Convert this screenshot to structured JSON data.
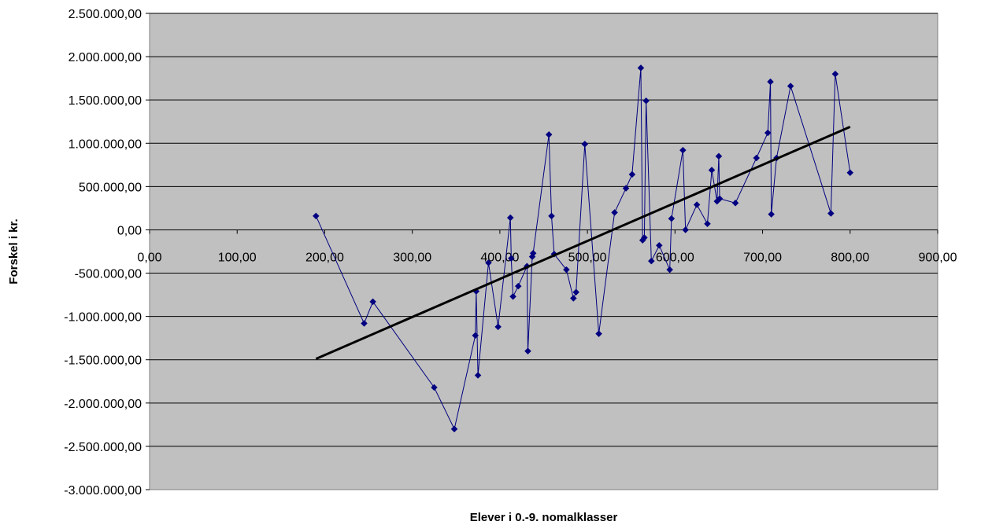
{
  "chart_data": {
    "type": "scatter",
    "title": "",
    "xlabel": "Elever i 0.-9. nomalklasser",
    "ylabel": "Forskel i kr.",
    "xlim": [
      0,
      900
    ],
    "ylim": [
      -3000000,
      2500000
    ],
    "x_ticks": [
      0,
      100,
      200,
      300,
      400,
      500,
      600,
      700,
      800,
      900
    ],
    "x_tick_labels": [
      "0,00",
      "100,00",
      "200,00",
      "300,00",
      "400,00",
      "500,00",
      "600,00",
      "700,00",
      "800,00",
      "900,00"
    ],
    "y_ticks": [
      2500000,
      2000000,
      1500000,
      1000000,
      500000,
      0,
      -500000,
      -1000000,
      -1500000,
      -2000000,
      -2500000,
      -3000000
    ],
    "y_tick_labels": [
      "2.500.000,00",
      "2.000.000,00",
      "1.500.000,00",
      "1.000.000,00",
      "500.000,00",
      "0,00",
      "-500.000,00",
      "-1.000.000,00",
      "-1.500.000,00",
      "-2.000.000,00",
      "-2.500.000,00",
      "-3.000.000,00"
    ],
    "grid": "horizontal",
    "legend": "none",
    "colors": {
      "plot_background": "#c0c0c0",
      "series": "#000080",
      "trendline": "#000000",
      "gridline": "#000000"
    },
    "series": [
      {
        "marker": "diamond",
        "connected": true,
        "points": [
          [
            190,
            160000
          ],
          [
            245,
            -1080000
          ],
          [
            255,
            -830000
          ],
          [
            325,
            -1820000
          ],
          [
            348,
            -2300000
          ],
          [
            372,
            -1220000
          ],
          [
            373,
            -710000
          ],
          [
            375,
            -1680000
          ],
          [
            387,
            -380000
          ],
          [
            398,
            -1120000
          ],
          [
            412,
            140000
          ],
          [
            413,
            -330000
          ],
          [
            415,
            -770000
          ],
          [
            421,
            -650000
          ],
          [
            431,
            -420000
          ],
          [
            432,
            -1400000
          ],
          [
            437,
            -310000
          ],
          [
            438,
            -270000
          ],
          [
            456,
            1100000
          ],
          [
            459,
            160000
          ],
          [
            462,
            -280000
          ],
          [
            476,
            -460000
          ],
          [
            484,
            -790000
          ],
          [
            487,
            -720000
          ],
          [
            497,
            990000
          ],
          [
            513,
            -1200000
          ],
          [
            531,
            200000
          ],
          [
            544,
            480000
          ],
          [
            551,
            640000
          ],
          [
            561,
            1870000
          ],
          [
            563,
            -120000
          ],
          [
            565,
            -90000
          ],
          [
            567,
            1490000
          ],
          [
            573,
            -360000
          ],
          [
            582,
            -180000
          ],
          [
            594,
            -460000
          ],
          [
            596,
            130000
          ],
          [
            609,
            920000
          ],
          [
            612,
            0
          ],
          [
            625,
            290000
          ],
          [
            637,
            70000
          ],
          [
            642,
            690000
          ],
          [
            648,
            330000
          ],
          [
            650,
            850000
          ],
          [
            651,
            360000
          ],
          [
            669,
            310000
          ],
          [
            693,
            830000
          ],
          [
            706,
            1120000
          ],
          [
            709,
            1710000
          ],
          [
            710,
            180000
          ],
          [
            716,
            830000
          ],
          [
            732,
            1660000
          ],
          [
            778,
            190000
          ],
          [
            783,
            1800000
          ],
          [
            800,
            660000
          ]
        ]
      }
    ],
    "trendline": {
      "type": "linear",
      "points": [
        [
          190,
          -1490000
        ],
        [
          800,
          1190000
        ]
      ]
    }
  }
}
